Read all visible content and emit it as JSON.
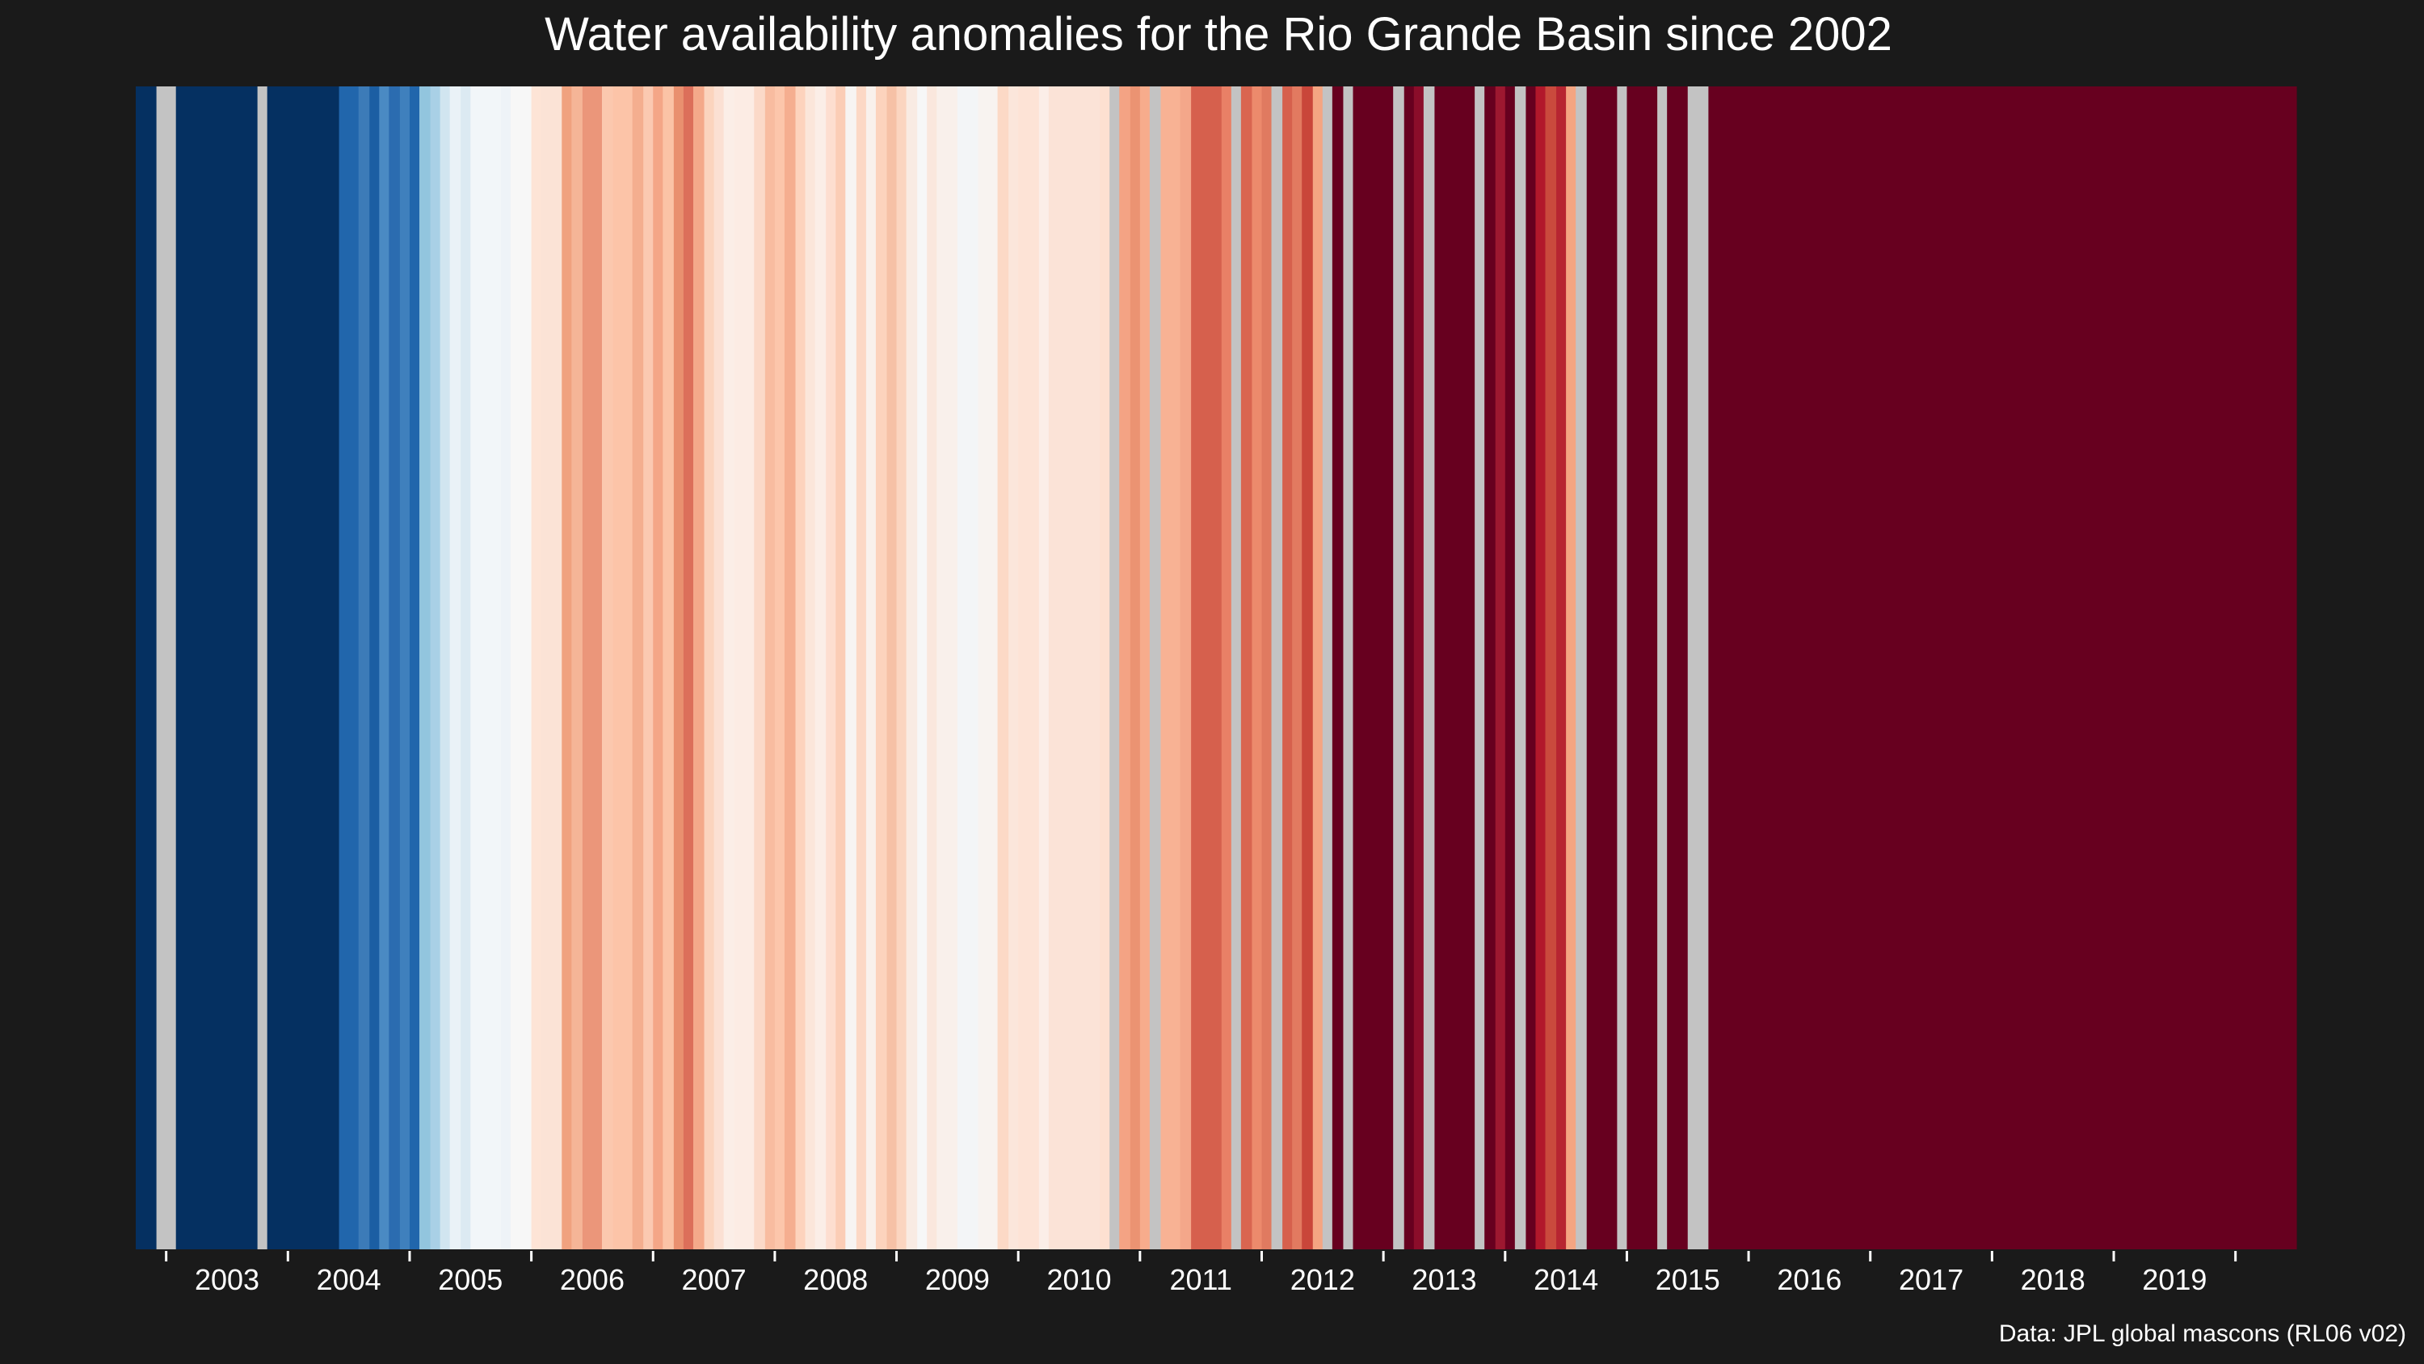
{
  "chart_data": {
    "type": "heatmap",
    "title": "Water availability anomalies for the Rio Grande Basin since 2002",
    "source": "Data: JPL global mascons (RL06 v02)",
    "x_ticks": [
      "2003",
      "2004",
      "2005",
      "2006",
      "2007",
      "2008",
      "2009",
      "2010",
      "2011",
      "2012",
      "2013",
      "2014",
      "2015",
      "2016",
      "2017",
      "2018",
      "2019"
    ],
    "x_range": [
      2002.25,
      2020.0
    ],
    "missing_color": "#c3c3c3",
    "stripes": [
      {
        "start": 2002.25,
        "end": 2002.42,
        "color": "#053061"
      },
      {
        "start": 2002.42,
        "end": 2002.58,
        "color": "#c3c3c3"
      },
      {
        "start": 2002.58,
        "end": 2003.25,
        "color": "#053061"
      },
      {
        "start": 2003.25,
        "end": 2003.33,
        "color": "#c3c3c3"
      },
      {
        "start": 2003.33,
        "end": 2003.92,
        "color": "#053061"
      },
      {
        "start": 2003.92,
        "end": 2004.08,
        "color": "#2166ac"
      },
      {
        "start": 2004.08,
        "end": 2004.17,
        "color": "#3c7bb8"
      },
      {
        "start": 2004.17,
        "end": 2004.25,
        "color": "#1b5ea3"
      },
      {
        "start": 2004.25,
        "end": 2004.33,
        "color": "#4a8ac3"
      },
      {
        "start": 2004.33,
        "end": 2004.42,
        "color": "#2b6cb0"
      },
      {
        "start": 2004.42,
        "end": 2004.5,
        "color": "#3f80bd"
      },
      {
        "start": 2004.5,
        "end": 2004.58,
        "color": "#2166ac"
      },
      {
        "start": 2004.58,
        "end": 2004.67,
        "color": "#92c5de"
      },
      {
        "start": 2004.67,
        "end": 2004.75,
        "color": "#a9d0e6"
      },
      {
        "start": 2004.75,
        "end": 2004.83,
        "color": "#d1e5f0"
      },
      {
        "start": 2004.83,
        "end": 2004.92,
        "color": "#eaf2f7"
      },
      {
        "start": 2004.92,
        "end": 2005.0,
        "color": "#dceaf2"
      },
      {
        "start": 2005.0,
        "end": 2005.25,
        "color": "#f2f6f9"
      },
      {
        "start": 2005.25,
        "end": 2005.33,
        "color": "#eef3f7"
      },
      {
        "start": 2005.33,
        "end": 2005.5,
        "color": "#f7f7f7"
      },
      {
        "start": 2005.5,
        "end": 2005.58,
        "color": "#fde4d6"
      },
      {
        "start": 2005.58,
        "end": 2005.75,
        "color": "#fbe3d6"
      },
      {
        "start": 2005.75,
        "end": 2005.83,
        "color": "#f0a27f"
      },
      {
        "start": 2005.83,
        "end": 2005.92,
        "color": "#f5b597"
      },
      {
        "start": 2005.92,
        "end": 2006.08,
        "color": "#eb967a"
      },
      {
        "start": 2006.08,
        "end": 2006.17,
        "color": "#fbc8ae"
      },
      {
        "start": 2006.17,
        "end": 2006.33,
        "color": "#fcc4a8"
      },
      {
        "start": 2006.33,
        "end": 2006.42,
        "color": "#f4ae8f"
      },
      {
        "start": 2006.42,
        "end": 2006.5,
        "color": "#fbc9b1"
      },
      {
        "start": 2006.5,
        "end": 2006.58,
        "color": "#f4a687"
      },
      {
        "start": 2006.58,
        "end": 2006.67,
        "color": "#fbc3a6"
      },
      {
        "start": 2006.67,
        "end": 2006.75,
        "color": "#e9906f"
      },
      {
        "start": 2006.75,
        "end": 2006.83,
        "color": "#dc6f5a"
      },
      {
        "start": 2006.83,
        "end": 2006.92,
        "color": "#f4a98a"
      },
      {
        "start": 2006.92,
        "end": 2007.0,
        "color": "#fbd4be"
      },
      {
        "start": 2007.0,
        "end": 2007.08,
        "color": "#fbe0d3"
      },
      {
        "start": 2007.08,
        "end": 2007.17,
        "color": "#fbeee7"
      },
      {
        "start": 2007.17,
        "end": 2007.33,
        "color": "#fcece4"
      },
      {
        "start": 2007.33,
        "end": 2007.42,
        "color": "#fbd9c8"
      },
      {
        "start": 2007.42,
        "end": 2007.5,
        "color": "#f8bca0"
      },
      {
        "start": 2007.5,
        "end": 2007.58,
        "color": "#fcc6ab"
      },
      {
        "start": 2007.58,
        "end": 2007.67,
        "color": "#f5ae90"
      },
      {
        "start": 2007.67,
        "end": 2007.75,
        "color": "#fdd3bd"
      },
      {
        "start": 2007.75,
        "end": 2007.83,
        "color": "#fbe6da"
      },
      {
        "start": 2007.83,
        "end": 2007.92,
        "color": "#fbeee7"
      },
      {
        "start": 2007.92,
        "end": 2008.0,
        "color": "#fdded0"
      },
      {
        "start": 2008.0,
        "end": 2008.08,
        "color": "#fbcdb6"
      },
      {
        "start": 2008.08,
        "end": 2008.17,
        "color": "#f7f4f2"
      },
      {
        "start": 2008.17,
        "end": 2008.25,
        "color": "#fcd8c5"
      },
      {
        "start": 2008.25,
        "end": 2008.33,
        "color": "#f9f1ec"
      },
      {
        "start": 2008.33,
        "end": 2008.42,
        "color": "#fcd3bd"
      },
      {
        "start": 2008.42,
        "end": 2008.5,
        "color": "#f6c1a6"
      },
      {
        "start": 2008.5,
        "end": 2008.58,
        "color": "#fbd5c0"
      },
      {
        "start": 2008.58,
        "end": 2008.67,
        "color": "#f9ebe3"
      },
      {
        "start": 2008.67,
        "end": 2008.75,
        "color": "#f7f7f7"
      },
      {
        "start": 2008.75,
        "end": 2008.83,
        "color": "#fae7dd"
      },
      {
        "start": 2008.83,
        "end": 2009.0,
        "color": "#f9f0eb"
      },
      {
        "start": 2009.0,
        "end": 2009.17,
        "color": "#f3f5f7"
      },
      {
        "start": 2009.17,
        "end": 2009.33,
        "color": "#f8f3f0"
      },
      {
        "start": 2009.33,
        "end": 2009.42,
        "color": "#fcd9c6"
      },
      {
        "start": 2009.42,
        "end": 2009.5,
        "color": "#fbe6db"
      },
      {
        "start": 2009.5,
        "end": 2009.67,
        "color": "#fde3d6"
      },
      {
        "start": 2009.67,
        "end": 2009.75,
        "color": "#fbeee8"
      },
      {
        "start": 2009.75,
        "end": 2010.17,
        "color": "#fbe3d7"
      },
      {
        "start": 2010.17,
        "end": 2010.25,
        "color": "#fde0d1"
      },
      {
        "start": 2010.25,
        "end": 2010.33,
        "color": "#c3c3c3"
      },
      {
        "start": 2010.33,
        "end": 2010.42,
        "color": "#f4a384"
      },
      {
        "start": 2010.42,
        "end": 2010.5,
        "color": "#eb9372"
      },
      {
        "start": 2010.5,
        "end": 2010.58,
        "color": "#f7ac8c"
      },
      {
        "start": 2010.58,
        "end": 2010.67,
        "color": "#c3c3c3"
      },
      {
        "start": 2010.67,
        "end": 2010.83,
        "color": "#f8b294"
      },
      {
        "start": 2010.83,
        "end": 2010.92,
        "color": "#f4a78a"
      },
      {
        "start": 2010.92,
        "end": 2011.17,
        "color": "#d6604d"
      },
      {
        "start": 2011.17,
        "end": 2011.25,
        "color": "#e98066"
      },
      {
        "start": 2011.25,
        "end": 2011.33,
        "color": "#c3c3c3"
      },
      {
        "start": 2011.33,
        "end": 2011.42,
        "color": "#d96550"
      },
      {
        "start": 2011.42,
        "end": 2011.5,
        "color": "#ec8a6c"
      },
      {
        "start": 2011.5,
        "end": 2011.58,
        "color": "#e07a60"
      },
      {
        "start": 2011.58,
        "end": 2011.67,
        "color": "#c3c3c3"
      },
      {
        "start": 2011.67,
        "end": 2011.75,
        "color": "#d6604d"
      },
      {
        "start": 2011.75,
        "end": 2011.83,
        "color": "#e27a60"
      },
      {
        "start": 2011.83,
        "end": 2011.92,
        "color": "#c9463a"
      },
      {
        "start": 2011.92,
        "end": 2012.0,
        "color": "#f4a582"
      },
      {
        "start": 2012.0,
        "end": 2012.08,
        "color": "#c3c3c3"
      },
      {
        "start": 2012.08,
        "end": 2012.17,
        "color": "#67001f"
      },
      {
        "start": 2012.17,
        "end": 2012.25,
        "color": "#c3c3c3"
      },
      {
        "start": 2012.25,
        "end": 2012.58,
        "color": "#67001f"
      },
      {
        "start": 2012.58,
        "end": 2012.67,
        "color": "#c3c3c3"
      },
      {
        "start": 2012.67,
        "end": 2012.75,
        "color": "#67001f"
      },
      {
        "start": 2012.75,
        "end": 2012.83,
        "color": "#8b0d2a"
      },
      {
        "start": 2012.83,
        "end": 2012.92,
        "color": "#c3c3c3"
      },
      {
        "start": 2012.92,
        "end": 2013.25,
        "color": "#67001f"
      },
      {
        "start": 2013.25,
        "end": 2013.33,
        "color": "#c3c3c3"
      },
      {
        "start": 2013.33,
        "end": 2013.42,
        "color": "#67001f"
      },
      {
        "start": 2013.42,
        "end": 2013.5,
        "color": "#9d1830"
      },
      {
        "start": 2013.5,
        "end": 2013.58,
        "color": "#67001f"
      },
      {
        "start": 2013.58,
        "end": 2013.67,
        "color": "#c3c3c3"
      },
      {
        "start": 2013.67,
        "end": 2013.75,
        "color": "#67001f"
      },
      {
        "start": 2013.75,
        "end": 2013.83,
        "color": "#b2182b"
      },
      {
        "start": 2013.83,
        "end": 2013.92,
        "color": "#ca4a3d"
      },
      {
        "start": 2013.92,
        "end": 2014.0,
        "color": "#b72531"
      },
      {
        "start": 2014.0,
        "end": 2014.08,
        "color": "#f4a582"
      },
      {
        "start": 2014.08,
        "end": 2014.17,
        "color": "#c3c3c3"
      },
      {
        "start": 2014.17,
        "end": 2014.42,
        "color": "#67001f"
      },
      {
        "start": 2014.42,
        "end": 2014.5,
        "color": "#c3c3c3"
      },
      {
        "start": 2014.5,
        "end": 2014.75,
        "color": "#67001f"
      },
      {
        "start": 2014.75,
        "end": 2014.83,
        "color": "#c3c3c3"
      },
      {
        "start": 2014.83,
        "end": 2015.0,
        "color": "#67001f"
      },
      {
        "start": 2015.0,
        "end": 2015.17,
        "color": "#c3c3c3"
      },
      {
        "start": 2015.17,
        "end": 2020.0,
        "color": "#67001f"
      }
    ]
  }
}
